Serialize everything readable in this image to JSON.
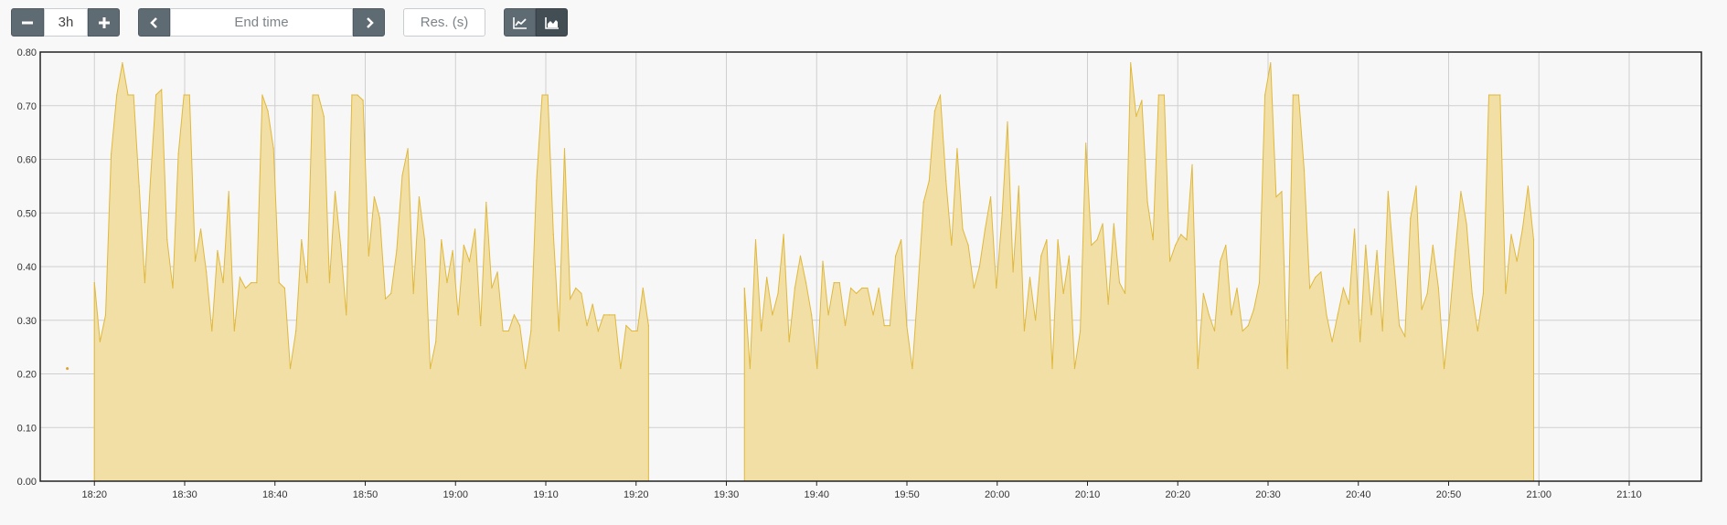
{
  "toolbar": {
    "range": {
      "value": "3h"
    },
    "end_time": {
      "placeholder": "End time"
    },
    "resolution": {
      "placeholder": "Res. (s)"
    },
    "icons": {
      "minus": "minus-icon",
      "plus": "plus-icon",
      "prev": "chevron-left-icon",
      "next": "chevron-right-icon",
      "line": "line-chart-icon",
      "stacked": "area-chart-icon"
    },
    "active_mode": "stacked"
  },
  "colors": {
    "fill": "#f1dfa6",
    "line": "#e0b83b",
    "grid": "#cfcfcf",
    "axis": "#222222",
    "button": "#5f6b73",
    "button_active": "#434d54"
  },
  "chart_data": {
    "type": "area",
    "ylim": [
      0,
      0.8
    ],
    "yticks": [
      "0.00",
      "0.10",
      "0.20",
      "0.30",
      "0.40",
      "0.50",
      "0.60",
      "0.70",
      "0.80"
    ],
    "xlim": [
      "18:14",
      "21:18"
    ],
    "xticks": [
      "18:20",
      "18:30",
      "18:40",
      "18:50",
      "19:00",
      "19:10",
      "19:20",
      "19:30",
      "19:40",
      "19:50",
      "20:00",
      "20:10",
      "20:20",
      "20:30",
      "20:40",
      "20:50",
      "21:00",
      "21:10"
    ],
    "grid": true,
    "isolated_point": {
      "x": "18:17",
      "y": 0.21
    },
    "series": [
      {
        "segments": [
          {
            "start": "18:20",
            "step_minutes": 0.62,
            "values": [
              0.37,
              0.26,
              0.31,
              0.61,
              0.72,
              0.78,
              0.72,
              0.72,
              0.55,
              0.37,
              0.56,
              0.72,
              0.73,
              0.45,
              0.36,
              0.61,
              0.72,
              0.72,
              0.41,
              0.47,
              0.39,
              0.28,
              0.43,
              0.37,
              0.54,
              0.28,
              0.38,
              0.36,
              0.37,
              0.37,
              0.72,
              0.69,
              0.62,
              0.37,
              0.36,
              0.21,
              0.28,
              0.45,
              0.37,
              0.72,
              0.72,
              0.68,
              0.37,
              0.54,
              0.44,
              0.31,
              0.72,
              0.72,
              0.71,
              0.42,
              0.53,
              0.49,
              0.34,
              0.35,
              0.43,
              0.57,
              0.62,
              0.35,
              0.53,
              0.45,
              0.21,
              0.26,
              0.45,
              0.37,
              0.43,
              0.31,
              0.44,
              0.41,
              0.47,
              0.29,
              0.52,
              0.36,
              0.39,
              0.28,
              0.28,
              0.31,
              0.29,
              0.21,
              0.28,
              0.56,
              0.72,
              0.72,
              0.46,
              0.28,
              0.62,
              0.34,
              0.36,
              0.35,
              0.29,
              0.33,
              0.28,
              0.31,
              0.31,
              0.31,
              0.21,
              0.29,
              0.28,
              0.28,
              0.36,
              0.29
            ]
          },
          {
            "start": "19:32",
            "step_minutes": 0.62,
            "values": [
              0.36,
              0.21,
              0.45,
              0.28,
              0.38,
              0.31,
              0.35,
              0.46,
              0.26,
              0.36,
              0.42,
              0.37,
              0.31,
              0.21,
              0.41,
              0.31,
              0.37,
              0.37,
              0.29,
              0.36,
              0.35,
              0.36,
              0.36,
              0.31,
              0.36,
              0.29,
              0.29,
              0.42,
              0.45,
              0.29,
              0.21,
              0.36,
              0.52,
              0.56,
              0.69,
              0.72,
              0.56,
              0.44,
              0.62,
              0.47,
              0.44,
              0.36,
              0.4,
              0.47,
              0.53,
              0.36,
              0.49,
              0.67,
              0.39,
              0.55,
              0.28,
              0.38,
              0.3,
              0.42,
              0.45,
              0.21,
              0.45,
              0.35,
              0.42,
              0.21,
              0.28,
              0.63,
              0.44,
              0.45,
              0.48,
              0.33,
              0.48,
              0.37,
              0.35,
              0.78,
              0.68,
              0.71,
              0.52,
              0.45,
              0.72,
              0.72,
              0.41,
              0.44,
              0.46,
              0.45,
              0.59,
              0.21,
              0.35,
              0.31,
              0.28,
              0.41,
              0.44,
              0.31,
              0.36,
              0.28,
              0.29,
              0.32,
              0.37,
              0.72,
              0.78,
              0.53,
              0.54,
              0.21,
              0.72,
              0.72,
              0.58,
              0.36,
              0.38,
              0.39,
              0.31,
              0.26,
              0.31,
              0.36,
              0.33,
              0.47,
              0.26,
              0.44,
              0.31,
              0.43,
              0.28,
              0.54,
              0.41,
              0.29,
              0.27,
              0.49,
              0.55,
              0.32,
              0.35,
              0.44,
              0.36,
              0.21,
              0.31,
              0.43,
              0.54,
              0.48,
              0.35,
              0.28,
              0.35,
              0.72,
              0.72,
              0.72,
              0.35,
              0.46,
              0.41,
              0.47,
              0.55,
              0.45
            ]
          }
        ]
      }
    ]
  }
}
